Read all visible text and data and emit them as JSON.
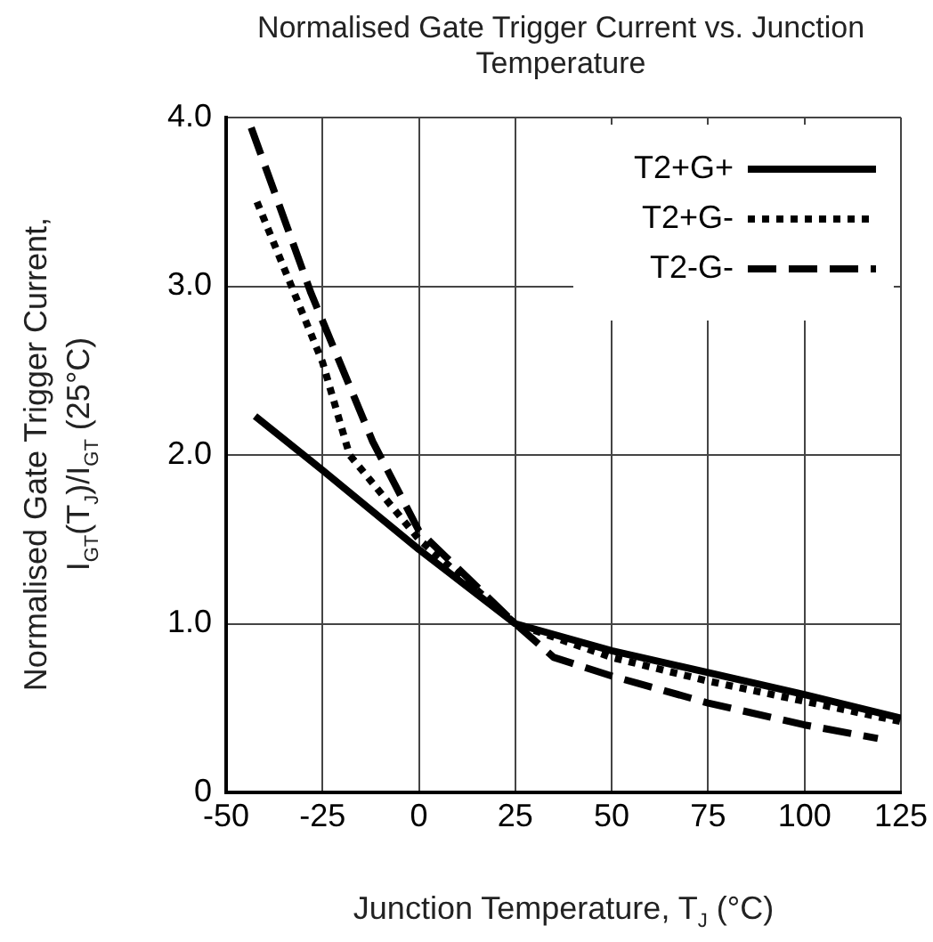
{
  "chart_data": {
    "type": "line",
    "title": "Normalised Gate Trigger Current vs. Junction Temperature",
    "xlabel": "Junction Temperature, T$_{J}$ (°C)",
    "ylabel": "Normalised Gate Trigger Current,\nI$_{GT}$(T$_{J}$)/I$_{GT}$ (25°C)",
    "xlim": [
      -50,
      125
    ],
    "xticks": [
      -50,
      -25,
      0,
      25,
      50,
      75,
      100,
      125
    ],
    "ylim": [
      0,
      4
    ],
    "yticks": [
      0,
      {
        "value": 1,
        "label": "1.0"
      },
      {
        "value": 2,
        "label": "2.0"
      },
      {
        "value": 3,
        "label": "3.0"
      },
      {
        "value": 4,
        "label": "4.0"
      }
    ],
    "grid": true,
    "legend": "top right",
    "marker": "none",
    "series": [
      {
        "name": "T2+G+",
        "color": "#000000",
        "line_style": "solid",
        "x": [
          -42.5,
          -25,
          0,
          25,
          50,
          75,
          100,
          125
        ],
        "values": [
          2.23,
          1.91,
          1.44,
          1.0,
          0.84,
          0.71,
          0.58,
          0.44
        ]
      },
      {
        "name": "T2+G-",
        "color": "#000000",
        "line_style": "dotted",
        "x": [
          -42,
          -25,
          -18,
          0,
          25,
          50,
          75,
          100,
          125
        ],
        "values": [
          3.5,
          2.55,
          2.0,
          1.5,
          1.0,
          0.8,
          0.66,
          0.54,
          0.42
        ]
      },
      {
        "name": "T2-G-",
        "color": "#000000",
        "line_style": "dashed",
        "x": [
          -43.5,
          -28,
          -12,
          0,
          25,
          35,
          50,
          75,
          100,
          119
        ],
        "values": [
          3.94,
          2.96,
          2.08,
          1.55,
          1.0,
          0.8,
          0.69,
          0.53,
          0.4,
          0.32
        ]
      }
    ]
  }
}
